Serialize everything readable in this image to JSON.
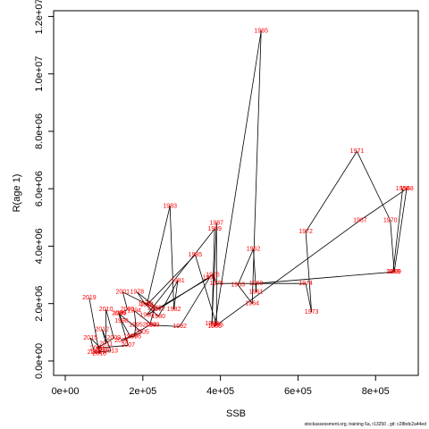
{
  "chart_data": {
    "type": "line",
    "xlabel": "SSB",
    "ylabel": "R(age 1)",
    "xlim": [
      -30000,
      910000
    ],
    "ylim": [
      -500000,
      12200000
    ],
    "xticks": [
      0,
      200000,
      400000,
      600000,
      800000
    ],
    "xtick_labels": [
      "0e+00",
      "2e+05",
      "4e+05",
      "6e+05",
      "8e+05"
    ],
    "yticks": [
      0,
      2000000,
      4000000,
      6000000,
      8000000,
      10000000,
      12000000
    ],
    "ytick_labels": [
      "0.0e+00",
      "2.0e+06",
      "4.0e+06",
      "6.0e+06",
      "8.0e+06",
      "1.0e+07",
      "1.2e+07"
    ],
    "line_color": "#000000",
    "label_color": "#ff0000",
    "points": [
      {
        "year": "1958",
        "x": 870000,
        "y": 6000000
      },
      {
        "year": "1959",
        "x": 845000,
        "y": 3100000
      },
      {
        "year": "1960",
        "x": 492000,
        "y": 2700000
      },
      {
        "year": "1961",
        "x": 492000,
        "y": 2400000
      },
      {
        "year": "1962",
        "x": 485000,
        "y": 3900000
      },
      {
        "year": "1963",
        "x": 445000,
        "y": 2650000
      },
      {
        "year": "1964",
        "x": 482000,
        "y": 2000000
      },
      {
        "year": "1965",
        "x": 505000,
        "y": 11500000
      },
      {
        "year": "1966",
        "x": 385000,
        "y": 1200000
      },
      {
        "year": "1967",
        "x": 760000,
        "y": 4900000
      },
      {
        "year": "1968",
        "x": 880000,
        "y": 6000000
      },
      {
        "year": "1969",
        "x": 848000,
        "y": 3100000
      },
      {
        "year": "1970",
        "x": 838000,
        "y": 4900000
      },
      {
        "year": "1971",
        "x": 752000,
        "y": 7300000
      },
      {
        "year": "1972",
        "x": 620000,
        "y": 4500000
      },
      {
        "year": "1973",
        "x": 635000,
        "y": 1700000
      },
      {
        "year": "1974",
        "x": 620000,
        "y": 2700000
      },
      {
        "year": "1975",
        "x": 390000,
        "y": 2700000
      },
      {
        "year": "1976",
        "x": 380000,
        "y": 3000000
      },
      {
        "year": "1977",
        "x": 240000,
        "y": 1800000
      },
      {
        "year": "1978",
        "x": 185000,
        "y": 2400000
      },
      {
        "year": "1979",
        "x": 205000,
        "y": 2000000
      },
      {
        "year": "1980",
        "x": 240000,
        "y": 1550000
      },
      {
        "year": "1981",
        "x": 290000,
        "y": 2800000
      },
      {
        "year": "1982",
        "x": 280000,
        "y": 1800000
      },
      {
        "year": "1983",
        "x": 270000,
        "y": 5400000
      },
      {
        "year": "1984",
        "x": 210000,
        "y": 1950000
      },
      {
        "year": "1985",
        "x": 335000,
        "y": 3700000
      },
      {
        "year": "1986",
        "x": 390000,
        "y": 1250000
      },
      {
        "year": "1987",
        "x": 390000,
        "y": 4800000
      },
      {
        "year": "1988",
        "x": 378000,
        "y": 1300000
      },
      {
        "year": "1989",
        "x": 385000,
        "y": 4600000
      },
      {
        "year": "1990",
        "x": 210000,
        "y": 1600000
      },
      {
        "year": "1991",
        "x": 372000,
        "y": 2900000
      },
      {
        "year": "1992",
        "x": 295000,
        "y": 1200000
      },
      {
        "year": "1993",
        "x": 225000,
        "y": 1250000
      },
      {
        "year": "1994",
        "x": 178000,
        "y": 1750000
      },
      {
        "year": "1995",
        "x": 182000,
        "y": 1250000
      },
      {
        "year": "1996",
        "x": 178000,
        "y": 850000
      },
      {
        "year": "1997",
        "x": 168000,
        "y": 850000
      },
      {
        "year": "1998",
        "x": 145000,
        "y": 1400000
      },
      {
        "year": "1999",
        "x": 140000,
        "y": 1650000
      },
      {
        "year": "2000",
        "x": 160000,
        "y": 1800000
      },
      {
        "year": "2001",
        "x": 148000,
        "y": 2400000
      },
      {
        "year": "2002",
        "x": 230000,
        "y": 1850000
      },
      {
        "year": "2003",
        "x": 218000,
        "y": 1250000
      },
      {
        "year": "2004",
        "x": 145000,
        "y": 700000
      },
      {
        "year": "2005",
        "x": 198000,
        "y": 1000000
      },
      {
        "year": "2006",
        "x": 138000,
        "y": 1650000
      },
      {
        "year": "2007",
        "x": 162000,
        "y": 550000
      },
      {
        "year": "2008",
        "x": 82000,
        "y": 450000
      },
      {
        "year": "2009",
        "x": 125000,
        "y": 800000
      },
      {
        "year": "2010",
        "x": 105000,
        "y": 1800000
      },
      {
        "year": "2011",
        "x": 105000,
        "y": 600000
      },
      {
        "year": "2012",
        "x": 95000,
        "y": 1100000
      },
      {
        "year": "2013",
        "x": 118000,
        "y": 350000
      },
      {
        "year": "2014",
        "x": 75000,
        "y": 300000
      },
      {
        "year": "2015",
        "x": 65000,
        "y": 800000
      },
      {
        "year": "2016",
        "x": 95000,
        "y": 400000
      },
      {
        "year": "2017",
        "x": 85000,
        "y": 300000
      },
      {
        "year": "2018",
        "x": 88000,
        "y": 250000
      },
      {
        "year": "2019",
        "x": 62000,
        "y": 2200000
      }
    ]
  },
  "footer": "stockassessment.org, training 6a, r13250 , git: c28bdc2a44ed"
}
